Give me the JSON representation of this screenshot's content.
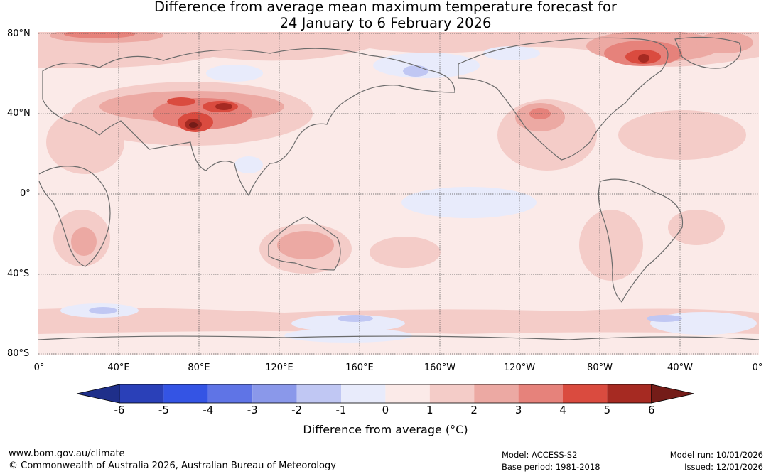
{
  "title": {
    "line1": "Difference from average mean maximum temperature forecast for",
    "line2": "24 January to 6 February 2026"
  },
  "lat_labels": [
    "80°N",
    "40°N",
    "0°",
    "40°S",
    "80°S"
  ],
  "lon_labels": [
    "0°",
    "40°E",
    "80°E",
    "120°E",
    "160°E",
    "160°W",
    "120°W",
    "80°W",
    "40°W",
    "0°"
  ],
  "colorbar": {
    "ticks": [
      "-6",
      "-5",
      "-4",
      "-3",
      "-2",
      "-1",
      "0",
      "1",
      "2",
      "3",
      "4",
      "5",
      "6"
    ],
    "colors": [
      "#1f2f8a",
      "#2a40b8",
      "#3454e4",
      "#5f74e6",
      "#8a98ea",
      "#c0c7f3",
      "#e8ebfb",
      "#fbeae8",
      "#f4ccc8",
      "#eca9a3",
      "#e6827b",
      "#da4b3f",
      "#a62a22",
      "#741c18"
    ],
    "label": "Difference from average (°C)"
  },
  "map_colors": {
    "land_outline": "#6b6b6b",
    "graticule": "#555555"
  },
  "footer": {
    "url": "www.bom.gov.au/climate",
    "copyright": "© Commonwealth of Australia 2026, Australian Bureau of Meteorology",
    "model": "Model: ACCESS-S2",
    "base_period": "Base period: 1981-2018",
    "model_run": "Model run: 10/01/2026",
    "issued": "Issued: 12/01/2026"
  }
}
